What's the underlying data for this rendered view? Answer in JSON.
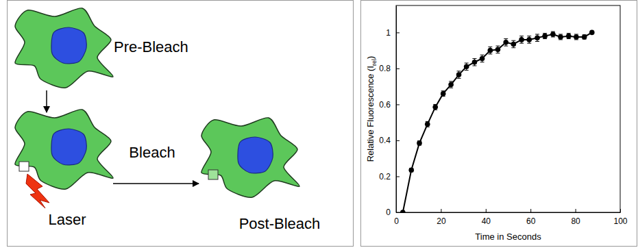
{
  "diagram": {
    "labels": [
      "Pre-Bleach",
      "Laser",
      "Bleach",
      "Post-Bleach"
    ]
  },
  "chart_data": {
    "type": "line",
    "x_label": "Time in Seconds",
    "y_label": [
      "Relative Fluorescence (I",
      "rel",
      ")"
    ],
    "x": [
      3,
      6.8,
      10.4,
      14,
      17.5,
      21,
      24.5,
      28,
      31.4,
      35,
      38.4,
      42,
      45.4,
      49,
      52.4,
      56,
      59.4,
      63,
      66.4,
      70,
      73.4,
      77,
      80.4,
      84,
      87.4
    ],
    "values": [
      0,
      0.235,
      0.385,
      0.49,
      0.585,
      0.66,
      0.71,
      0.765,
      0.81,
      0.835,
      0.855,
      0.9,
      0.905,
      0.945,
      0.935,
      0.96,
      0.96,
      0.97,
      0.98,
      0.99,
      0.975,
      0.98,
      0.975,
      0.975,
      1.0
    ],
    "errors": [
      0,
      0.01,
      0.012,
      0.015,
      0.015,
      0.015,
      0.018,
      0.02,
      0.02,
      0.02,
      0.02,
      0.02,
      0.02,
      0.02,
      0.02,
      0.02,
      0.02,
      0.02,
      0.015,
      0.015,
      0.015,
      0.015,
      0.015,
      0.012,
      0
    ],
    "color": "#000000",
    "marker": "circle",
    "xlim": [
      0,
      100
    ],
    "xticks": [
      0,
      20,
      40,
      60,
      80,
      100
    ],
    "ylim": [
      0,
      1.15
    ],
    "yticks": [
      0,
      0.2,
      0.4,
      0.6,
      0.8,
      1
    ]
  }
}
